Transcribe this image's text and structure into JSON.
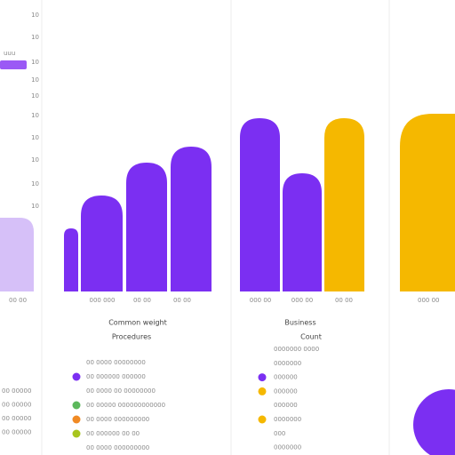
{
  "left_panel": {
    "badge": "uuu",
    "ticks": [
      "10",
      "10",
      "10",
      "10",
      "10",
      "10",
      "10",
      "10",
      "10",
      "10"
    ],
    "bar_label": "00 00",
    "notes": [
      "00 00000",
      "00 00000",
      "00 00000",
      "00 00000"
    ]
  },
  "middle_panel": {
    "x_labels": [
      "000 000",
      "00 00",
      "00 00"
    ],
    "title": "Common weight",
    "subtitle": "Procedures",
    "legend": [
      "00 0000 00000000",
      "00 000000 000000",
      "00 0000 00 00000000",
      "00 00000 000000000000",
      "00 0000 000000000",
      "00 000000 00 00",
      "00 0000 000000000"
    ]
  },
  "right_panel": {
    "x_labels": [
      "000 00",
      "000 00",
      "00 00"
    ],
    "title": "Business",
    "subtitle": "Count",
    "legend": [
      "0000000 0000",
      "0000000",
      "000000",
      "000000",
      "000000",
      "0000000",
      "000",
      "0000000"
    ]
  },
  "far_panel": {
    "x_label": "000 00"
  }
}
